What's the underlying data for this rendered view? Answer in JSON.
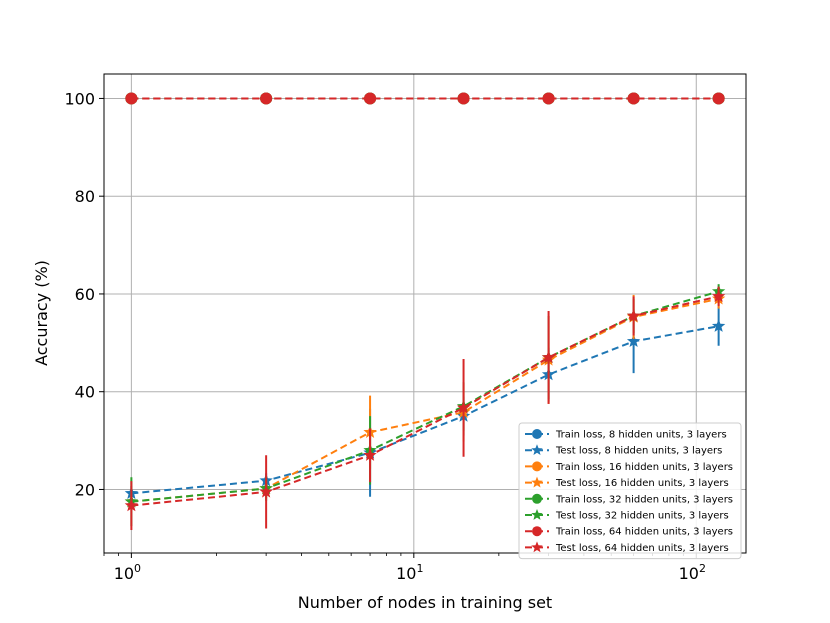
{
  "chart_data": {
    "type": "line",
    "xlabel": "Number of nodes in training set",
    "ylabel": "Accuracy (%)",
    "xscale": "log",
    "xlim": [
      0.8,
      150
    ],
    "ylim": [
      7,
      105
    ],
    "grid": true,
    "legend_position": "lower-right",
    "x": [
      1,
      3,
      7,
      15,
      30,
      60,
      120
    ],
    "xticks": [
      {
        "value": 1,
        "base": "10",
        "exp": "0"
      },
      {
        "value": 10,
        "base": "10",
        "exp": "1"
      },
      {
        "value": 100,
        "base": "10",
        "exp": "2"
      }
    ],
    "yticks": [
      20,
      40,
      60,
      80,
      100
    ],
    "series": [
      {
        "name": "Train loss, 8 hidden units, 3 layers",
        "color": "#1f77b4",
        "marker": "circle",
        "values": [
          100,
          100,
          100,
          100,
          100,
          100,
          100
        ],
        "errors": [
          0,
          0,
          0,
          0,
          0,
          0,
          0
        ]
      },
      {
        "name": "Test loss, 8 hidden units, 3 layers",
        "color": "#1f77b4",
        "marker": "star",
        "values": [
          19.2,
          21.8,
          27.5,
          35.0,
          43.5,
          50.3,
          53.4
        ],
        "errors": [
          1.5,
          1.5,
          9.0,
          4.0,
          5.5,
          6.5,
          4.0
        ]
      },
      {
        "name": "Train loss, 16 hidden units, 3 layers",
        "color": "#ff7f0e",
        "marker": "circle",
        "values": [
          100,
          100,
          100,
          100,
          100,
          100,
          100
        ],
        "errors": [
          0,
          0,
          0,
          0,
          0,
          0,
          0
        ]
      },
      {
        "name": "Test loss, 16 hidden units, 3 layers",
        "color": "#ff7f0e",
        "marker": "star",
        "values": [
          17.5,
          20.2,
          31.7,
          35.8,
          46.5,
          55.3,
          59.0
        ],
        "errors": [
          1.5,
          2.0,
          7.5,
          6.0,
          9.0,
          4.5,
          2.0
        ]
      },
      {
        "name": "Train loss, 32 hidden units, 3 layers",
        "color": "#2ca02c",
        "marker": "circle",
        "values": [
          100,
          100,
          100,
          100,
          100,
          100,
          100
        ],
        "errors": [
          0,
          0,
          0,
          0,
          0,
          0,
          0
        ]
      },
      {
        "name": "Test loss, 32 hidden units, 3 layers",
        "color": "#2ca02c",
        "marker": "star",
        "values": [
          17.5,
          20.2,
          28.0,
          37.0,
          47.0,
          55.5,
          60.5
        ],
        "errors": [
          5.0,
          2.5,
          7.0,
          5.0,
          8.5,
          3.5,
          1.5
        ]
      },
      {
        "name": "Train loss, 64 hidden units, 3 layers",
        "color": "#d62728",
        "marker": "circle",
        "values": [
          100,
          100,
          100,
          100,
          100,
          100,
          100
        ],
        "errors": [
          0,
          0,
          0,
          0,
          0,
          0,
          0
        ]
      },
      {
        "name": "Test loss, 64 hidden units, 3 layers",
        "color": "#d62728",
        "marker": "star",
        "values": [
          16.7,
          19.5,
          27.0,
          36.7,
          47.0,
          55.5,
          59.5
        ],
        "errors": [
          5.0,
          7.5,
          5.5,
          10.0,
          9.5,
          4.0,
          2.0
        ]
      }
    ]
  }
}
